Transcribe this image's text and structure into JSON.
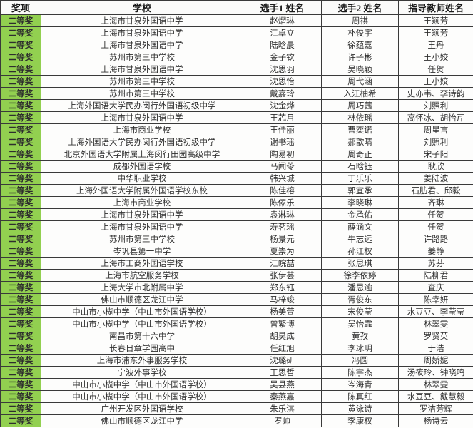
{
  "table": {
    "columns": [
      "奖项",
      "学校",
      "选手1 姓名",
      "选手2 姓名",
      "指导教师姓名"
    ],
    "award_color": "#92D050",
    "border_color": "#3a3a3a",
    "rows": [
      {
        "award": "二等奖",
        "school": "上海市甘泉外国语中学",
        "p1": "赵熠琳",
        "p2": "周祺",
        "teacher": "王颖芳"
      },
      {
        "award": "二等奖",
        "school": "上海市甘泉外国语中学",
        "p1": "江卓立",
        "p2": "朴俊宇",
        "teacher": "王颖芳"
      },
      {
        "award": "二等奖",
        "school": "上海市甘泉外国语中学",
        "p1": "陆晗晨",
        "p2": "徐蕴嘉",
        "teacher": "王丹"
      },
      {
        "award": "二等奖",
        "school": "苏州市第三中学校",
        "p1": "金子钦",
        "p2": "许子彬",
        "teacher": "王小姣"
      },
      {
        "award": "二等奖",
        "school": "上海市甘泉外国语中学",
        "p1": "沈思羽",
        "p2": "吴晓颖",
        "teacher": "任贺"
      },
      {
        "award": "二等奖",
        "school": "苏州市第三中学校",
        "p1": "沈思怡",
        "p2": "周弋涵",
        "teacher": "王小姣"
      },
      {
        "award": "二等奖",
        "school": "苏州市第三中学校",
        "p1": "戴嘉玲",
        "p2": "入江柚希",
        "teacher": "史亦韦、李诗韵"
      },
      {
        "award": "二等奖",
        "school": "上海外国语大学民办闵行外国语初级中学",
        "p1": "沈金烨",
        "p2": "周巧茜",
        "teacher": "刘照利"
      },
      {
        "award": "二等奖",
        "school": "上海市甘泉外国语中学",
        "p1": "王芯月",
        "p2": "林依瑶",
        "teacher": "高怀冰、胡怡芹"
      },
      {
        "award": "二等奖",
        "school": "上海市商业学校",
        "p1": "王佳丽",
        "p2": "曹奕诺",
        "teacher": "周星言"
      },
      {
        "award": "二等奖",
        "school": "上海外国语大学民办闵行外国语初级中学",
        "p1": "谢书瑶",
        "p2": "郝歆晴",
        "teacher": "刘照利"
      },
      {
        "award": "二等奖",
        "school": "北京外国语大学附属上海闵行田园高级中学",
        "p1": "陶易初",
        "p2": "周奇正",
        "teacher": "宋子阳"
      },
      {
        "award": "二等奖",
        "school": "成都外国语学校",
        "p1": "马闻苓",
        "p2": "石晗钰",
        "teacher": "耿欣"
      },
      {
        "award": "二等奖",
        "school": "中华职业学校",
        "p1": "韩兴城",
        "p2": "丁乐乐",
        "teacher": "姜陆波"
      },
      {
        "award": "二等奖",
        "school": "上海外国语大学附属外国语学校东校",
        "p1": "陈佳榕",
        "p2": "郭宜承",
        "teacher": "石肪君、邱毅"
      },
      {
        "award": "二等奖",
        "school": "上海市商业学校",
        "p1": "陈傢乐",
        "p2": "李晓琳",
        "teacher": "齐琳"
      },
      {
        "award": "二等奖",
        "school": "上海市甘泉外国语中学",
        "p1": "袁淋琳",
        "p2": "金承佑",
        "teacher": "任贺"
      },
      {
        "award": "二等奖",
        "school": "上海市甘泉外国语中学",
        "p1": "寿茗瑶",
        "p2": "薛涵文",
        "teacher": "任贺"
      },
      {
        "award": "二等奖",
        "school": "苏州市第三中学校",
        "p1": "杨景元",
        "p2": "牛志远",
        "teacher": "许路路"
      },
      {
        "award": "二等奖",
        "school": "岑巩县第一中学",
        "p1": "夏崇为",
        "p2": "孙江权",
        "teacher": "姜静"
      },
      {
        "award": "二等奖",
        "school": "上海市工商外国语学校",
        "p1": "江皖喆",
        "p2": "张思琪",
        "teacher": "苏芬"
      },
      {
        "award": "二等奖",
        "school": "上海市航空服务学校",
        "p1": "张伊芸",
        "p2": "徐李依婷",
        "teacher": "陆柳君"
      },
      {
        "award": "二等奖",
        "school": "上海大学市北附属中学",
        "p1": "郑东钰",
        "p2": "潘思逾",
        "teacher": "査庆"
      },
      {
        "award": "二等奖",
        "school": "佛山市顺德区龙江中学",
        "p1": "马梓竣",
        "p2": "胥俊东",
        "teacher": "陈幸妍"
      },
      {
        "award": "二等奖",
        "school": "中山市小榄中学（中山市外国语学校）",
        "p1": "杨美萱",
        "p2": "宋俊莹",
        "teacher": "水豆豆、李莹莹"
      },
      {
        "award": "二等奖",
        "school": "中山市小榄中学（中山市外国语学校）",
        "p1": "曾繁博",
        "p2": "吴怡霏",
        "teacher": "林翠雯"
      },
      {
        "award": "二等奖",
        "school": "南昌市第十六中学",
        "p1": "胡昊成",
        "p2": "黄孜",
        "teacher": "罗贤英"
      },
      {
        "award": "二等奖",
        "school": "长春日章学园高中",
        "p1": "任红旭",
        "p2": "李冰玥",
        "teacher": "于浩"
      },
      {
        "award": "二等奖",
        "school": "上海市浦东外事服务学校",
        "p1": "沈璐研",
        "p2": "冯圆",
        "teacher": "周娇妮"
      },
      {
        "award": "二等奖",
        "school": "宁波外事学校",
        "p1": "王思哲",
        "p2": "陈宇杰",
        "teacher": "汤筱玲、钟晓鸣"
      },
      {
        "award": "二等奖",
        "school": "中山市小榄中学（中山市外国语学校）",
        "p1": "吴县燕",
        "p2": "岑海青",
        "teacher": "林翠雯"
      },
      {
        "award": "二等奖",
        "school": "中山市小榄中学（中山市外国语学校）",
        "p1": "秦燕嘉",
        "p2": "陈真红",
        "teacher": "水豆豆、戴慧毅"
      },
      {
        "award": "二等奖",
        "school": "广州开发区外国语学校",
        "p1": "朱乐淇",
        "p2": "黄泳诗",
        "teacher": "罗洁芳辉"
      },
      {
        "award": "二等奖",
        "school": "佛山市顺德区龙江中学",
        "p1": "罗帅",
        "p2": "李康权",
        "teacher": "杨诗云"
      }
    ]
  }
}
